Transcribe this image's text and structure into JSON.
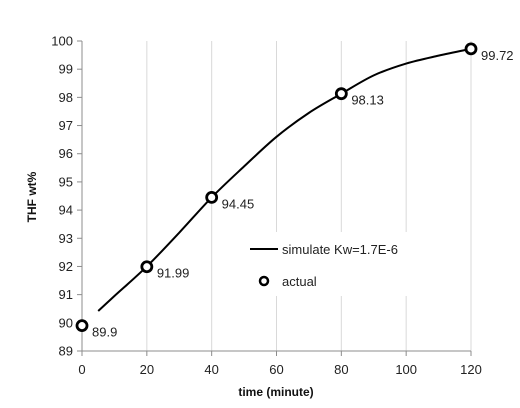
{
  "chart_data": {
    "type": "scatter",
    "xlabel": "time (minute)",
    "ylabel": "THF wt%",
    "xlim": [
      0,
      120
    ],
    "ylim": [
      89,
      100
    ],
    "x_ticks": [
      0,
      20,
      40,
      60,
      80,
      100,
      120
    ],
    "y_ticks": [
      89,
      90,
      91,
      92,
      93,
      94,
      95,
      96,
      97,
      98,
      99,
      100
    ],
    "grid": "vertical",
    "legend_position": "center-right",
    "series": [
      {
        "name": "simulate Kw=1.7E-6",
        "kind": "line",
        "color": "#000000",
        "x": [
          5,
          10,
          20,
          30,
          40,
          50,
          60,
          70,
          80,
          90,
          100,
          110,
          120
        ],
        "y": [
          90.42,
          90.95,
          92.0,
          93.2,
          94.45,
          95.55,
          96.6,
          97.45,
          98.13,
          98.78,
          99.2,
          99.48,
          99.72
        ]
      },
      {
        "name": "actual",
        "kind": "markers",
        "color": "#000000",
        "x": [
          0,
          20,
          40,
          80,
          120
        ],
        "y": [
          89.9,
          91.99,
          94.45,
          98.13,
          99.72
        ],
        "labels": [
          "89.9",
          "91.99",
          "94.45",
          "98.13",
          "99.72"
        ]
      }
    ]
  }
}
